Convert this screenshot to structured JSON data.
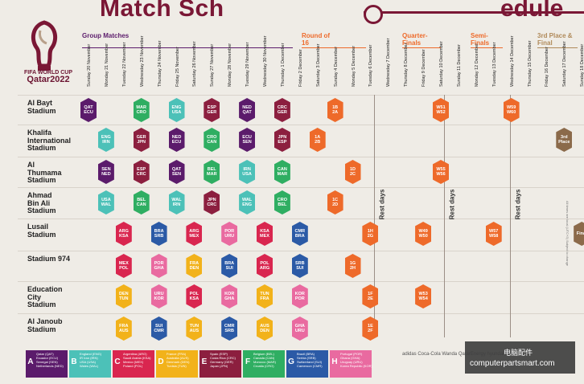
{
  "title_left": "Match Sch",
  "title_right": "edule",
  "logo": {
    "line1": "FIFA WORLD CUP",
    "line2": "Qatar2022"
  },
  "sections": {
    "group": "Group Matches",
    "r16": "Round of 16",
    "qf": "Quarter-Finals",
    "sf": "Semi-Finals",
    "final": "3rd Place & Final"
  },
  "dates": [
    "Sunday 20 November",
    "Monday 21 November",
    "Tuesday 22 November",
    "Wednesday 23 November",
    "Thursday 24 November",
    "Friday 25 November",
    "Saturday 26 November",
    "Sunday 27 November",
    "Monday 28 November",
    "Tuesday 29 November",
    "Wednesday 30 November",
    "Thursday 1 December",
    "Friday 2 December",
    "Saturday 3 December",
    "Sunday 4 December",
    "Monday 5 December",
    "Tuesday 6 December",
    "Wednesday 7 December",
    "Thursday 8 December",
    "Friday 9 December",
    "Saturday 10 December",
    "Sunday 11 December",
    "Monday 12 December",
    "Tuesday 13 December",
    "Wednesday 14 December",
    "Thursday 15 December",
    "Friday 16 December",
    "Saturday 17 December",
    "Sunday 18 December"
  ],
  "stadiums": [
    {
      "l1": "Al Bayt",
      "l2": "Stadium",
      "l3": ""
    },
    {
      "l1": "Khalifa",
      "l2": "International",
      "l3": "Stadium"
    },
    {
      "l1": "Al",
      "l2": "Thumama",
      "l3": "Stadium"
    },
    {
      "l1": "Ahmad",
      "l2": "Bin Ali",
      "l3": "Stadium"
    },
    {
      "l1": "Lusail",
      "l2": "Stadium",
      "l3": ""
    },
    {
      "l1": "Stadium 974",
      "l2": "",
      "l3": ""
    },
    {
      "l1": "Education",
      "l2": "City",
      "l3": "Stadium"
    },
    {
      "l1": "Al Janoub",
      "l2": "Stadium",
      "l3": ""
    }
  ],
  "rest_days": [
    "Rest days",
    "Rest days",
    "Rest days"
  ],
  "colors": {
    "A": "#5b1b6b",
    "B": "#4cc1b8",
    "C": "#d9264f",
    "D": "#f2b21a",
    "E": "#8c1f3f",
    "F": "#2fae62",
    "G": "#2b5aa6",
    "H": "#e96aa0",
    "KO": "#ee6a2a",
    "final": "#8b6a4a",
    "brand": "#7a1735"
  },
  "matches": [
    {
      "row": 0,
      "col": 0,
      "g": "A",
      "t1": "QAT",
      "t2": "ECU"
    },
    {
      "row": 0,
      "col": 3,
      "g": "F",
      "t1": "MAR",
      "t2": "CRO"
    },
    {
      "row": 0,
      "col": 5,
      "g": "B",
      "t1": "ENG",
      "t2": "USA"
    },
    {
      "row": 0,
      "col": 7,
      "g": "E",
      "t1": "ESP",
      "t2": "GER"
    },
    {
      "row": 0,
      "col": 9,
      "g": "A",
      "t1": "NED",
      "t2": "QAT"
    },
    {
      "row": 0,
      "col": 11,
      "g": "E",
      "t1": "CRC",
      "t2": "GER"
    },
    {
      "row": 0,
      "col": 14,
      "g": "KO",
      "t1": "1B",
      "t2": "2A"
    },
    {
      "row": 0,
      "col": 20,
      "g": "KO",
      "t1": "W51",
      "t2": "W52"
    },
    {
      "row": 0,
      "col": 24,
      "g": "KO",
      "t1": "W59",
      "t2": "W60"
    },
    {
      "row": 1,
      "col": 1,
      "g": "B",
      "t1": "ENG",
      "t2": "IRN"
    },
    {
      "row": 1,
      "col": 3,
      "g": "E",
      "t1": "GER",
      "t2": "JPN"
    },
    {
      "row": 1,
      "col": 5,
      "g": "A",
      "t1": "NED",
      "t2": "ECU"
    },
    {
      "row": 1,
      "col": 7,
      "g": "F",
      "t1": "CRO",
      "t2": "CAN"
    },
    {
      "row": 1,
      "col": 9,
      "g": "A",
      "t1": "ECU",
      "t2": "SEN"
    },
    {
      "row": 1,
      "col": 11,
      "g": "E",
      "t1": "JPN",
      "t2": "ESP"
    },
    {
      "row": 1,
      "col": 13,
      "g": "KO",
      "t1": "1A",
      "t2": "2B"
    },
    {
      "row": 1,
      "col": 27,
      "g": "final",
      "t1": "3rd",
      "t2": "Place"
    },
    {
      "row": 2,
      "col": 1,
      "g": "A",
      "t1": "SEN",
      "t2": "NED"
    },
    {
      "row": 2,
      "col": 3,
      "g": "E",
      "t1": "ESP",
      "t2": "CRC"
    },
    {
      "row": 2,
      "col": 5,
      "g": "A",
      "t1": "QAT",
      "t2": "SEN"
    },
    {
      "row": 2,
      "col": 7,
      "g": "F",
      "t1": "BEL",
      "t2": "MAR"
    },
    {
      "row": 2,
      "col": 9,
      "g": "B",
      "t1": "IRN",
      "t2": "USA"
    },
    {
      "row": 2,
      "col": 11,
      "g": "F",
      "t1": "CAN",
      "t2": "MAR"
    },
    {
      "row": 2,
      "col": 15,
      "g": "KO",
      "t1": "1D",
      "t2": "2C"
    },
    {
      "row": 2,
      "col": 20,
      "g": "KO",
      "t1": "W55",
      "t2": "W56"
    },
    {
      "row": 3,
      "col": 1,
      "g": "B",
      "t1": "USA",
      "t2": "WAL"
    },
    {
      "row": 3,
      "col": 3,
      "g": "F",
      "t1": "BEL",
      "t2": "CAN"
    },
    {
      "row": 3,
      "col": 5,
      "g": "B",
      "t1": "WAL",
      "t2": "IRN"
    },
    {
      "row": 3,
      "col": 7,
      "g": "E",
      "t1": "JPN",
      "t2": "CRC"
    },
    {
      "row": 3,
      "col": 9,
      "g": "B",
      "t1": "WAL",
      "t2": "ENG"
    },
    {
      "row": 3,
      "col": 11,
      "g": "F",
      "t1": "CRO",
      "t2": "BEL"
    },
    {
      "row": 3,
      "col": 14,
      "g": "KO",
      "t1": "1C",
      "t2": "2D"
    },
    {
      "row": 4,
      "col": 2,
      "g": "C",
      "t1": "ARG",
      "t2": "KSA"
    },
    {
      "row": 4,
      "col": 4,
      "g": "G",
      "t1": "BRA",
      "t2": "SRB"
    },
    {
      "row": 4,
      "col": 6,
      "g": "C",
      "t1": "ARG",
      "t2": "MEX"
    },
    {
      "row": 4,
      "col": 8,
      "g": "H",
      "t1": "POR",
      "t2": "URU"
    },
    {
      "row": 4,
      "col": 10,
      "g": "C",
      "t1": "KSA",
      "t2": "MEX"
    },
    {
      "row": 4,
      "col": 12,
      "g": "G",
      "t1": "CMR",
      "t2": "BRA"
    },
    {
      "row": 4,
      "col": 16,
      "g": "KO",
      "t1": "1H",
      "t2": "2G"
    },
    {
      "row": 4,
      "col": 19,
      "g": "KO",
      "t1": "W49",
      "t2": "W50"
    },
    {
      "row": 4,
      "col": 23,
      "g": "KO",
      "t1": "W57",
      "t2": "W58"
    },
    {
      "row": 4,
      "col": 28,
      "g": "final",
      "t1": "Final",
      "t2": ""
    },
    {
      "row": 5,
      "col": 2,
      "g": "C",
      "t1": "MEX",
      "t2": "POL"
    },
    {
      "row": 5,
      "col": 4,
      "g": "H",
      "t1": "POR",
      "t2": "GHA"
    },
    {
      "row": 5,
      "col": 6,
      "g": "D",
      "t1": "FRA",
      "t2": "DEN"
    },
    {
      "row": 5,
      "col": 8,
      "g": "G",
      "t1": "BRA",
      "t2": "SUI"
    },
    {
      "row": 5,
      "col": 10,
      "g": "C",
      "t1": "POL",
      "t2": "ARG"
    },
    {
      "row": 5,
      "col": 12,
      "g": "G",
      "t1": "SRB",
      "t2": "SUI"
    },
    {
      "row": 5,
      "col": 15,
      "g": "KO",
      "t1": "1G",
      "t2": "2H"
    },
    {
      "row": 6,
      "col": 2,
      "g": "D",
      "t1": "DEN",
      "t2": "TUN"
    },
    {
      "row": 6,
      "col": 4,
      "g": "H",
      "t1": "URU",
      "t2": "KOR"
    },
    {
      "row": 6,
      "col": 6,
      "g": "C",
      "t1": "POL",
      "t2": "KSA"
    },
    {
      "row": 6,
      "col": 8,
      "g": "H",
      "t1": "KOR",
      "t2": "GHA"
    },
    {
      "row": 6,
      "col": 10,
      "g": "D",
      "t1": "TUN",
      "t2": "FRA"
    },
    {
      "row": 6,
      "col": 12,
      "g": "H",
      "t1": "KOR",
      "t2": "POR"
    },
    {
      "row": 6,
      "col": 16,
      "g": "KO",
      "t1": "1F",
      "t2": "2E"
    },
    {
      "row": 6,
      "col": 19,
      "g": "KO",
      "t1": "W53",
      "t2": "W54"
    },
    {
      "row": 7,
      "col": 2,
      "g": "D",
      "t1": "FRA",
      "t2": "AUS"
    },
    {
      "row": 7,
      "col": 4,
      "g": "G",
      "t1": "SUI",
      "t2": "CMR"
    },
    {
      "row": 7,
      "col": 6,
      "g": "D",
      "t1": "TUN",
      "t2": "AUS"
    },
    {
      "row": 7,
      "col": 8,
      "g": "G",
      "t1": "CMR",
      "t2": "SRB"
    },
    {
      "row": 7,
      "col": 10,
      "g": "D",
      "t1": "AUS",
      "t2": "DEN"
    },
    {
      "row": 7,
      "col": 12,
      "g": "H",
      "t1": "GHA",
      "t2": "URU"
    },
    {
      "row": 7,
      "col": 16,
      "g": "KO",
      "t1": "1E",
      "t2": "2F"
    }
  ],
  "legend": [
    {
      "g": "A",
      "teams": [
        "Qatar (QAT)",
        "Ecuador (ECU)",
        "Senegal (SEN)",
        "Netherlands (NED)"
      ]
    },
    {
      "g": "B",
      "teams": [
        "England (ENG)",
        "IR Iran (IRN)",
        "USA (USA)",
        "Wales (WAL)"
      ]
    },
    {
      "g": "C",
      "teams": [
        "Argentina (ARG)",
        "Saudi Arabia (KSA)",
        "Mexico (MEX)",
        "Poland (POL)"
      ]
    },
    {
      "g": "D",
      "teams": [
        "France (FRA)",
        "Australia (AUS)",
        "Denmark (DEN)",
        "Tunisia (TUN)"
      ]
    },
    {
      "g": "E",
      "teams": [
        "Spain (ESP)",
        "Costa Rica (CRC)",
        "Germany (GER)",
        "Japan (JPN)"
      ]
    },
    {
      "g": "F",
      "teams": [
        "Belgium (BEL)",
        "Canada (CAN)",
        "Morocco (MAR)",
        "Croatia (CRO)"
      ]
    },
    {
      "g": "G",
      "teams": [
        "Brazil (BRA)",
        "Serbia (SRB)",
        "Switzerland (SUI)",
        "Cameroon (CMR)"
      ]
    },
    {
      "g": "H",
      "teams": [
        "Portugal (POR)",
        "Ghana (GHA)",
        "Uruguay (URU)",
        "Korea Republic (KOR)"
      ]
    }
  ],
  "sponsors": "adidas  Coca-Cola  Wanda  QatarEnergy  hyundai  Visa",
  "watermark": {
    "cn": "电脑配件",
    "url": "computerpartsmart.com"
  },
  "side_note": "All times are local (UTC+3)  Subject to change"
}
